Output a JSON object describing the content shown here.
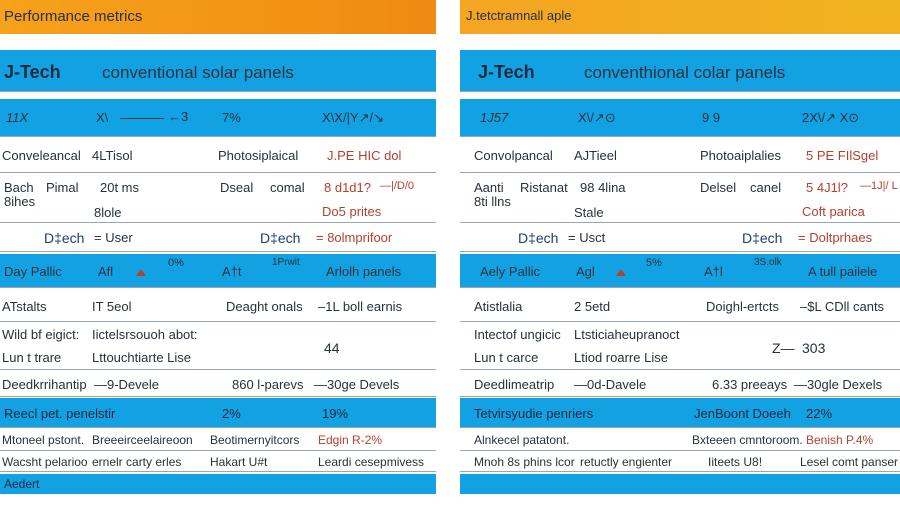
{
  "left": {
    "title": "Performance metrics",
    "header": {
      "brand": "J-Tech",
      "compare": "conventional solar panels"
    },
    "row1": {
      "a": "11X",
      "b": "X\\ ——— ←3",
      "c": "7%",
      "d": "X\\X/|Y↗/↘"
    },
    "row2": {
      "a": "Conveleancal",
      "b": "4LTisol",
      "c": "Photosiplaical",
      "d": "J.PE HIC dol"
    },
    "row3": {
      "a1": "Bach",
      "a2": "Pimal",
      "a3": "8ihes",
      "b": "20t ms",
      "b2": "8lole",
      "c": "Dseal",
      "c2": "comal",
      "d": "8 d1d1?",
      "d2": "—|/D/0",
      "d3": "Do5 prites"
    },
    "row4": {
      "a": "D‡ech",
      "b": "= User",
      "c": "D‡ech",
      "d": "= 8olmprifoor"
    },
    "row5": {
      "a": "Day Pallic",
      "b": "Afl",
      "b2": "0%",
      "c": "A†t",
      "c2": "1Prwit",
      "d": "Arlolh panels"
    },
    "row6": {
      "a": "ATstalts",
      "b": "IT 5eol",
      "c": "Deaght onals",
      "d": "–1L boll earnis"
    },
    "row7": {
      "a": "Wild bf eigict:",
      "a2": "Lun  t trare",
      "b": "Iictelsrsouoh abot:",
      "b2": "Lttouchtiarte  Lise",
      "d": "44"
    },
    "row8": {
      "a": "Deedkrrihantip",
      "b": "—9-Devele",
      "c": "860 l-parevs",
      "d": "—30ge Devels"
    },
    "row9": {
      "a": "Reecl pet. penelstir",
      "c": "2%",
      "d": "19%"
    },
    "row10": {
      "a": "Mtoneel pstont.",
      "b": "Breeeirceelaireoon",
      "c": "Beotimernyitcors",
      "d": "Edgin R-2%"
    },
    "row11": {
      "a": "Wacsht pelarioo",
      "b": "ernelr carty erles",
      "c": "Hakart U#t",
      "d": "Leardi cesepmivess"
    },
    "footer": "Aedert"
  },
  "right": {
    "title": "J.tetctramnall aple",
    "header": {
      "brand": "J-Tech",
      "compare": "conventhional colar panels"
    },
    "row1": {
      "a": "1J57",
      "b": "X\\/↗⊙",
      "c": "9 9",
      "d": "2X\\/↗ X⊙"
    },
    "row2": {
      "a": "Convolpancal",
      "b": "AJTieel",
      "c": "Photoaiplalies",
      "d": "5 PE FIlSgel"
    },
    "row3": {
      "a1": "Aanti",
      "a2": "Ristanat",
      "a3": "8ti llns",
      "b": "98 4lina",
      "b2": "Stale",
      "c": "Delsel",
      "c2": "canel",
      "d": "5 4J1l?",
      "d2": "—1J|/ L",
      "d3": "Coft parica"
    },
    "row4": {
      "a": "D‡ech",
      "b": "= Usct",
      "c": "D‡ech",
      "d": "= Doltprhaes"
    },
    "row5": {
      "a": "Aely Pallic",
      "b": "Agl",
      "b2": "5%",
      "c": "A†l",
      "c2": "3S.olk",
      "d": "A tull pailele"
    },
    "row6": {
      "a": "Atistlalia",
      "b": "2 5etd",
      "c": "Doighl-ertcts",
      "d": "–$L CDll cants"
    },
    "row7": {
      "a": "Intectof ungicic",
      "a2": "Lun  t carce",
      "b": "Ltsticiaheupranoct",
      "b2": "Ltiod roarre  Lise",
      "c": "Z—",
      "d": "303"
    },
    "row8": {
      "a": "Deedlimeatrip",
      "b": "—0d-Davele",
      "c": "6.33 preeays",
      "d": "—30gle Dexels"
    },
    "row9": {
      "a": "Tetvirsyudie penriers",
      "c": "JenBoont Doeeh",
      "d": "22%"
    },
    "row10": {
      "a": "Alnkecel patatont.",
      "b": "Bxteeen cmntoroom.",
      "d": "Benish P.4%"
    },
    "row11": {
      "a": "Mnoh 8s phins lcor ",
      "b": "retuctly engienter",
      "c": "Iiteets U8!",
      "d": "Lesel comt panser"
    },
    "footer": ""
  }
}
